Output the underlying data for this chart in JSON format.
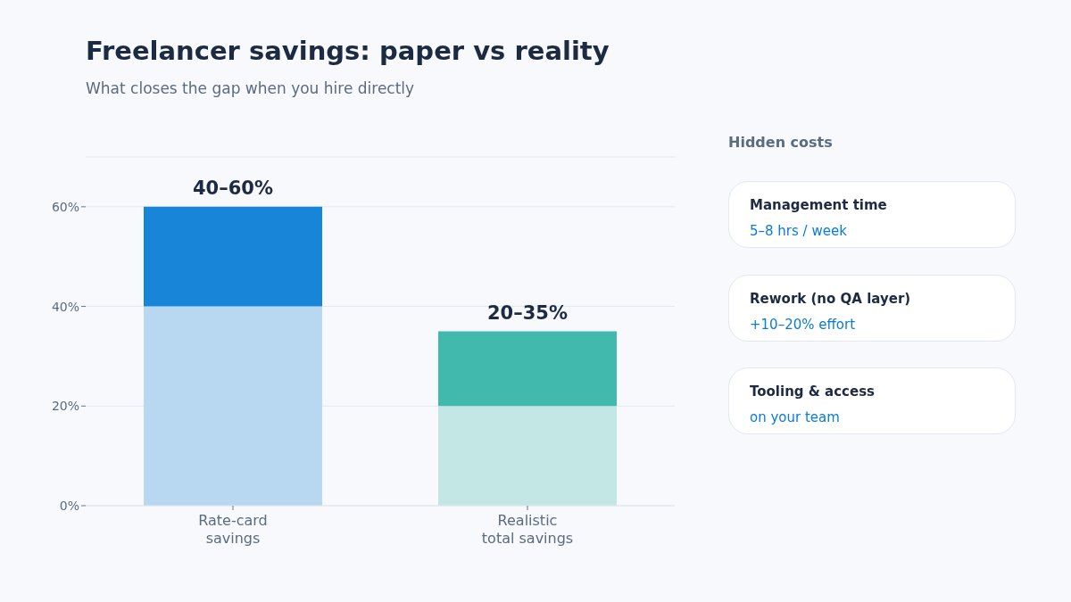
{
  "chart_data": {
    "type": "bar",
    "title": "Freelancer savings: paper vs reality",
    "subtitle": "What closes the gap when you hire directly",
    "categories": [
      "Rate-card\nsavings",
      "Realistic\ntotal savings"
    ],
    "stacked": true,
    "series": [
      {
        "colors": [
          "#b8d8f2",
          "#c3e7e4"
        ],
        "values": [
          40,
          20
        ]
      },
      {
        "colors": [
          "#1985d9",
          "#41b9ad"
        ],
        "values": [
          20,
          15
        ]
      }
    ],
    "ylim": [
      0,
      70
    ],
    "yticks": [
      {
        "value": 0,
        "label": "0%"
      },
      {
        "value": 20,
        "label": "20%"
      },
      {
        "value": 40,
        "label": "40%"
      },
      {
        "value": 60,
        "label": "60%"
      }
    ],
    "grid": "y",
    "annotations": [
      {
        "text": "40–60%",
        "x": "Rate-card\nsavings",
        "y": 60
      },
      {
        "text": "20–35%",
        "x": "Realistic\ntotal savings",
        "y": 35
      },
      "Hidden costs",
      "Management time",
      "5–8 hrs / week",
      "Rework (no QA layer)",
      "+10–20% effort",
      "Tooling & access",
      "on your team"
    ]
  }
}
